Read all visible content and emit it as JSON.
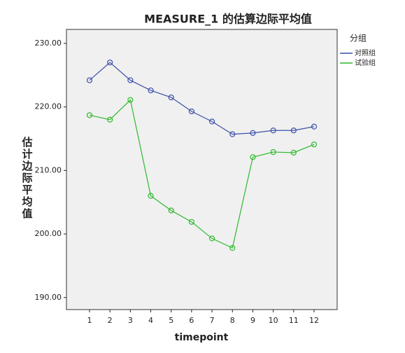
{
  "chart_data": {
    "type": "line",
    "title": "MEASURE_1 的估算边际平均值",
    "x_label": "timepoint",
    "y_label": "估计边际平均值",
    "legend_title": "分组",
    "legend_position": "right",
    "categories": [
      "1",
      "2",
      "3",
      "4",
      "5",
      "6",
      "7",
      "8",
      "9",
      "10",
      "11",
      "12"
    ],
    "ylim": [
      188.1,
      232.2
    ],
    "yticks": [
      {
        "value": 190,
        "label": "190.00"
      },
      {
        "value": 200,
        "label": "200.00"
      },
      {
        "value": 210,
        "label": "210.00"
      },
      {
        "value": 220,
        "label": "220.00"
      },
      {
        "value": 230,
        "label": "230.00"
      }
    ],
    "series": [
      {
        "name": "对照组",
        "color": "#3d4fa8",
        "values": [
          224.2,
          227.0,
          224.2,
          222.6,
          221.5,
          219.3,
          217.7,
          215.7,
          215.9,
          216.3,
          216.3,
          216.9
        ]
      },
      {
        "name": "试验组",
        "color": "#2db92d",
        "values": [
          218.7,
          218.0,
          221.1,
          206.0,
          203.7,
          201.9,
          199.3,
          197.8,
          212.1,
          212.9,
          212.8,
          214.1
        ]
      }
    ]
  }
}
